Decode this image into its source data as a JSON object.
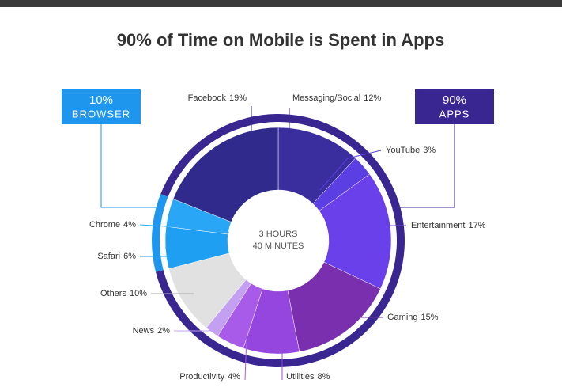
{
  "chart_data": {
    "type": "donut",
    "title": "90% of Time on Mobile is Spent in Apps",
    "categories": [
      "Messaging/Social",
      "YouTube",
      "Entertainment",
      "Gaming",
      "Utilities",
      "Productivity",
      "News",
      "Others",
      "Safari",
      "Chrome",
      "Facebook"
    ],
    "values": [
      12,
      3,
      17,
      15,
      8,
      4,
      2,
      10,
      6,
      4,
      19
    ],
    "value_labels": [
      "12%",
      "3%",
      "17%",
      "15%",
      "8%",
      "4%",
      "2%",
      "10%",
      "6%",
      "4%",
      "19%"
    ],
    "colors": [
      "#3a2d9e",
      "#5b3fe2",
      "#6a40ea",
      "#7a2fae",
      "#9446df",
      "#a85ae9",
      "#c4a0f2",
      "#e1e1e1",
      "#1f9ff1",
      "#2aa6f6",
      "#2f2a8c"
    ],
    "center_text": [
      "3 HOURS",
      "40 MINUTES"
    ],
    "groups": [
      {
        "label": "BROWSER",
        "value": 10,
        "value_label": "10%",
        "color": "#1e96ee"
      },
      {
        "label": "APPS",
        "value": 90,
        "value_label": "90%",
        "color": "#3a2690"
      }
    ]
  }
}
